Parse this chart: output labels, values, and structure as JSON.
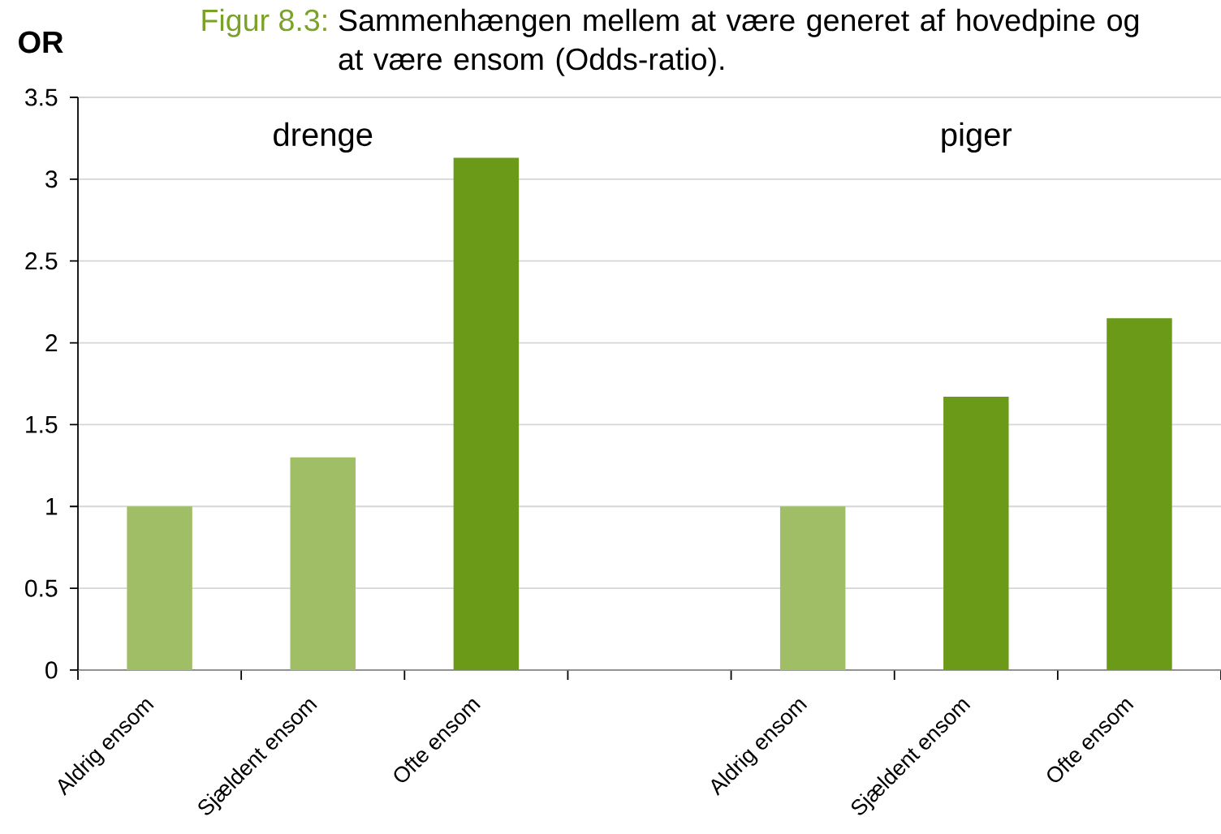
{
  "chart_data": {
    "type": "bar",
    "title": "Figur 8.3:",
    "subtitle": "Sammenhængen mellem at være generet af hovedpine og at være ensom (Odds-ratio).",
    "ylabel": "OR",
    "categories": [
      "Aldrig ensom",
      "Sjældent ensom",
      "Ofte ensom",
      null,
      "Aldrig ensom",
      "Sjældent ensom",
      "Ofte ensom"
    ],
    "values": [
      1.0,
      1.3,
      3.13,
      null,
      1.0,
      1.67,
      2.15
    ],
    "colors": [
      "#9fbe65",
      "#9fbe65",
      "#6b9a18",
      null,
      "#9fbe65",
      "#6b9a18",
      "#6b9a18"
    ],
    "annotations": [
      "drenge",
      "piger"
    ],
    "ylim": [
      0,
      3.5
    ],
    "yticks": [
      0,
      0.5,
      1,
      1.5,
      2,
      2.5,
      3,
      3.5
    ],
    "grid": "y"
  }
}
